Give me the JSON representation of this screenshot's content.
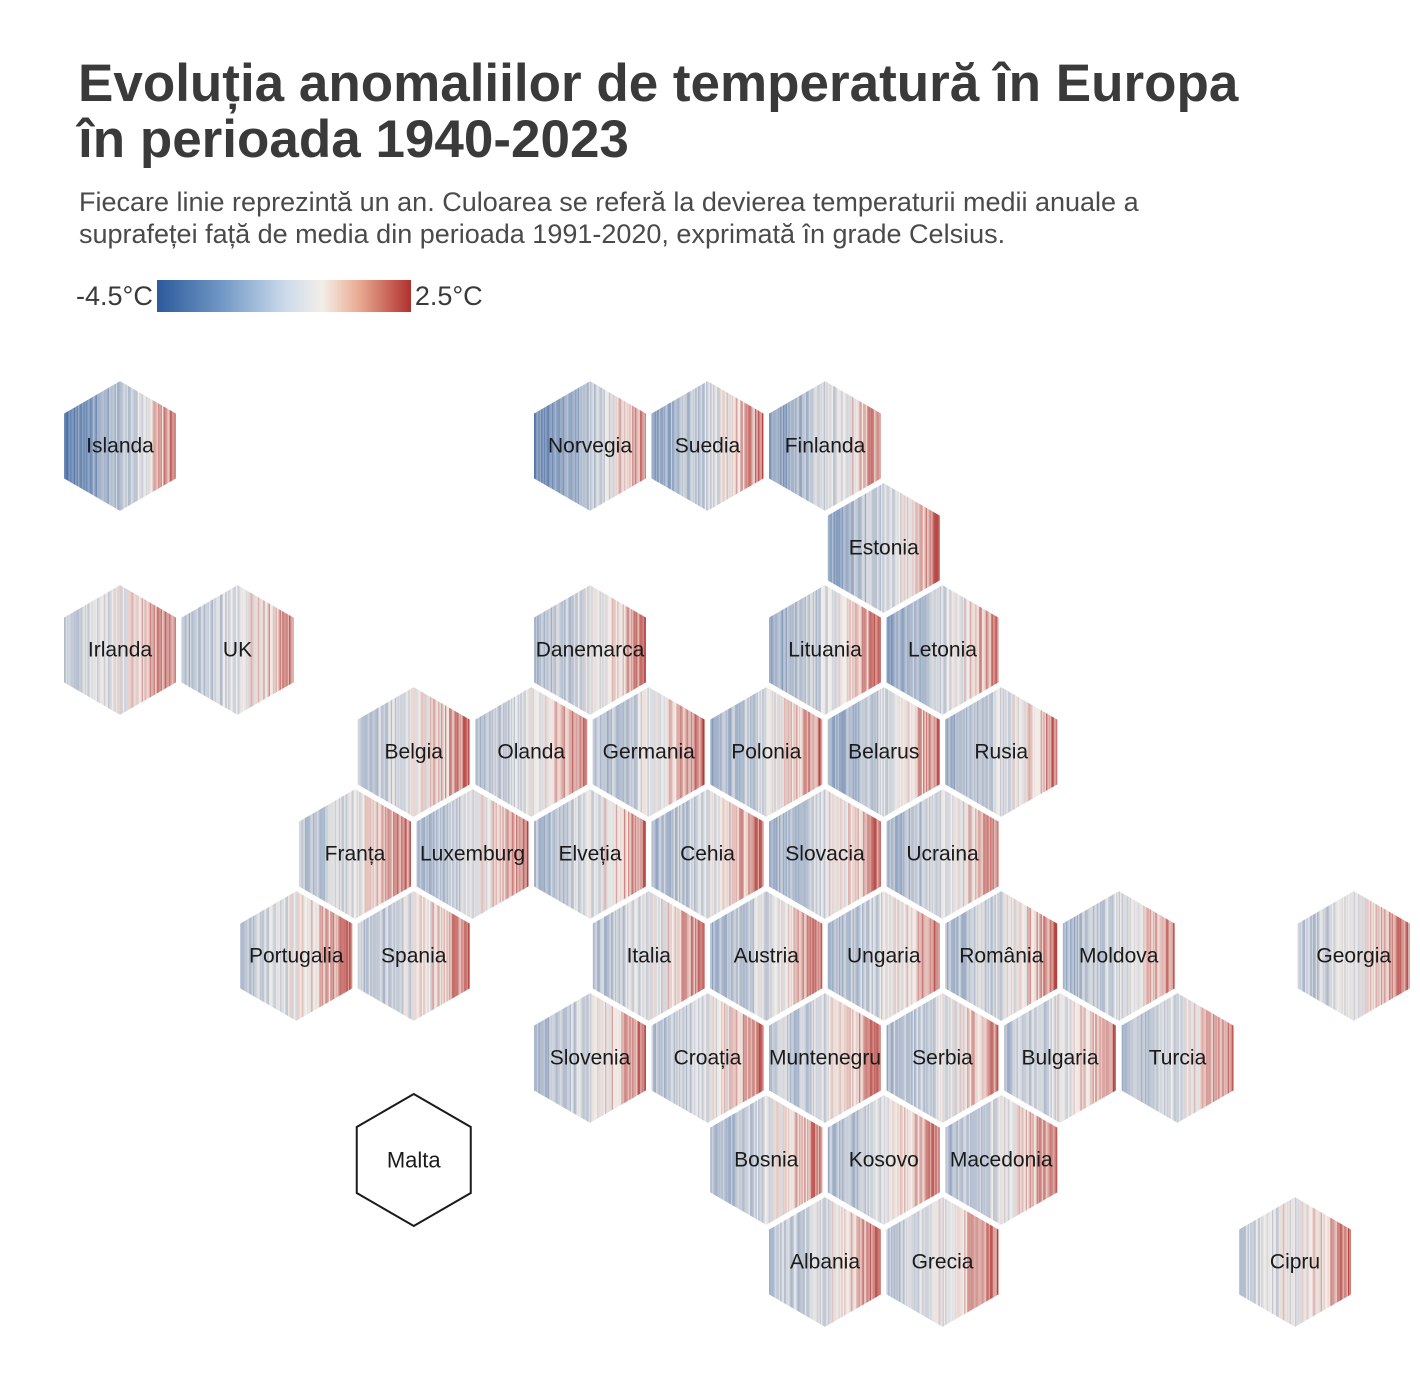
{
  "header": {
    "title_line1": "Evoluția anomaliilor de temperatură în Europa",
    "title_line2": "în perioada 1940-2023",
    "subtitle_line1": "Fiecare linie reprezintă un an. Culoarea se referă la devierea temperaturii medii anuale a",
    "subtitle_line2": "suprafeței față de media din perioada 1991-2020, exprimată în grade Celsius."
  },
  "legend": {
    "min_label": "-4.5°C",
    "max_label": "2.5°C",
    "colors": [
      "#2c5a9b",
      "#f3eee9",
      "#b1302d"
    ]
  },
  "chart_data": {
    "type": "heatmap",
    "layout": "hex-tile-map",
    "years": [
      1940,
      2023
    ],
    "color_range": [
      -4.5,
      2.5
    ],
    "colors": {
      "cold": "#2c5a9b",
      "neutral": "#f3eee9",
      "warm": "#b1302d"
    },
    "no_data_stroke": "#1a1a1a",
    "countries": [
      {
        "name": "Islanda",
        "row": 0,
        "col": 0,
        "cool": 2.6
      },
      {
        "name": "Norvegia",
        "row": 0,
        "col": 4,
        "cool": 2.4
      },
      {
        "name": "Suedia",
        "row": 0,
        "col": 5,
        "cool": 1.6
      },
      {
        "name": "Finlanda",
        "row": 0,
        "col": 6,
        "cool": 1.8
      },
      {
        "name": "Estonia",
        "row": 1,
        "col": 6,
        "cool": 1.6
      },
      {
        "name": "Irlanda",
        "row": 2,
        "col": 0,
        "cool": 0.6
      },
      {
        "name": "UK",
        "row": 2,
        "col": 1,
        "cool": 0.9
      },
      {
        "name": "Danemarca",
        "row": 2,
        "col": 4,
        "cool": 1.1
      },
      {
        "name": "Lituania",
        "row": 2,
        "col": 6,
        "cool": 1.5
      },
      {
        "name": "Letonia",
        "row": 2,
        "col": 7,
        "cool": 1.6
      },
      {
        "name": "Belgia",
        "row": 3,
        "col": 2,
        "cool": 0.8
      },
      {
        "name": "Olanda",
        "row": 3,
        "col": 3,
        "cool": 0.9
      },
      {
        "name": "Germania",
        "row": 3,
        "col": 4,
        "cool": 1.0
      },
      {
        "name": "Polonia",
        "row": 3,
        "col": 5,
        "cool": 1.3
      },
      {
        "name": "Belarus",
        "row": 3,
        "col": 6,
        "cool": 1.6
      },
      {
        "name": "Rusia",
        "row": 3,
        "col": 7,
        "cool": 1.3
      },
      {
        "name": "Franța",
        "row": 4,
        "col": 2,
        "cool": 0.8
      },
      {
        "name": "Luxemburg",
        "row": 4,
        "col": 3,
        "cool": 1.0
      },
      {
        "name": "Elveția",
        "row": 4,
        "col": 4,
        "cool": 1.1
      },
      {
        "name": "Cehia",
        "row": 4,
        "col": 5,
        "cool": 1.1
      },
      {
        "name": "Slovacia",
        "row": 4,
        "col": 6,
        "cool": 1.2
      },
      {
        "name": "Ucraina",
        "row": 4,
        "col": 7,
        "cool": 1.3
      },
      {
        "name": "Portugalia",
        "row": 5,
        "col": 1,
        "cool": 0.6
      },
      {
        "name": "Spania",
        "row": 5,
        "col": 2,
        "cool": 0.8
      },
      {
        "name": "Italia",
        "row": 5,
        "col": 4,
        "cool": 0.9
      },
      {
        "name": "Austria",
        "row": 5,
        "col": 5,
        "cool": 1.2
      },
      {
        "name": "Ungaria",
        "row": 5,
        "col": 6,
        "cool": 1.1
      },
      {
        "name": "România",
        "row": 5,
        "col": 7,
        "cool": 1.1
      },
      {
        "name": "Moldova",
        "row": 5,
        "col": 8,
        "cool": 1.2
      },
      {
        "name": "Georgia",
        "row": 5,
        "col": 10,
        "cool": 0.8
      },
      {
        "name": "Slovenia",
        "row": 6,
        "col": 4,
        "cool": 1.1
      },
      {
        "name": "Croația",
        "row": 6,
        "col": 5,
        "cool": 1.0
      },
      {
        "name": "Muntenegru",
        "row": 6,
        "col": 6,
        "cool": 1.0
      },
      {
        "name": "Serbia",
        "row": 6,
        "col": 7,
        "cool": 1.0
      },
      {
        "name": "Bulgaria",
        "row": 6,
        "col": 8,
        "cool": 0.9
      },
      {
        "name": "Turcia",
        "row": 6,
        "col": 9,
        "cool": 0.9
      },
      {
        "name": "Bosnia",
        "row": 7,
        "col": 5,
        "cool": 1.2
      },
      {
        "name": "Kosovo",
        "row": 7,
        "col": 6,
        "cool": 1.1
      },
      {
        "name": "Macedonia",
        "row": 7,
        "col": 7,
        "cool": 1.0
      },
      {
        "name": "Albania",
        "row": 8,
        "col": 6,
        "cool": 0.9
      },
      {
        "name": "Grecia",
        "row": 8,
        "col": 7,
        "cool": 0.8
      },
      {
        "name": "Cipru",
        "row": 8,
        "col": 10,
        "cool": 0.6
      },
      {
        "name": "Malta",
        "row": 7,
        "col": 2,
        "no_data": true
      }
    ]
  }
}
